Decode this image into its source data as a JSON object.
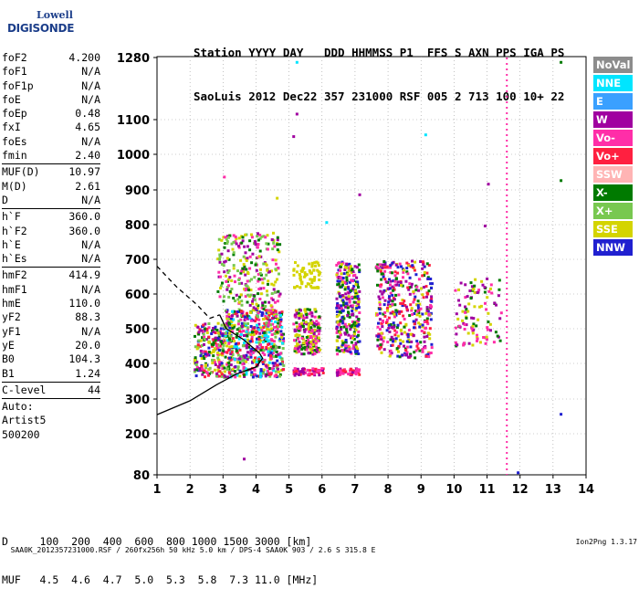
{
  "logo": {
    "line1": "Lowell",
    "line2": "DIGISONDE"
  },
  "header": {
    "line1": "Station YYYY DAY   DDD HHMMSS P1  FFS S AXN PPS IGA PS",
    "line2": "SaoLuis 2012 Dec22 357 231000 RSF 005 2 713 100 10+ 22"
  },
  "params_group1": [
    {
      "key": "foF2",
      "value": "4.200"
    },
    {
      "key": "foF1",
      "value": "N/A"
    },
    {
      "key": "foF1p",
      "value": "N/A"
    },
    {
      "key": "foE",
      "value": "N/A"
    },
    {
      "key": "foEp",
      "value": "0.48"
    },
    {
      "key": "fxI",
      "value": "4.65"
    },
    {
      "key": "foEs",
      "value": "N/A"
    },
    {
      "key": "fmin",
      "value": "2.40"
    }
  ],
  "params_group2": [
    {
      "key": "MUF(D)",
      "value": "10.97"
    },
    {
      "key": "M(D)",
      "value": "2.61"
    },
    {
      "key": "D",
      "value": "N/A"
    }
  ],
  "params_group3": [
    {
      "key": "h`F",
      "value": "360.0"
    },
    {
      "key": "h`F2",
      "value": "360.0"
    },
    {
      "key": "h`E",
      "value": "N/A"
    },
    {
      "key": "h`Es",
      "value": "N/A"
    }
  ],
  "params_group4": [
    {
      "key": "hmF2",
      "value": "414.9"
    },
    {
      "key": "hmF1",
      "value": "N/A"
    },
    {
      "key": "hmE",
      "value": "110.0"
    },
    {
      "key": "yF2",
      "value": "88.3"
    },
    {
      "key": "yF1",
      "value": "N/A"
    },
    {
      "key": "yE",
      "value": "20.0"
    },
    {
      "key": "B0",
      "value": "104.3"
    },
    {
      "key": "B1",
      "value": "1.24"
    }
  ],
  "clevel": {
    "key": "C-level",
    "value": "44"
  },
  "auto": [
    "Auto:",
    "Artist5",
    "500200"
  ],
  "legend": [
    {
      "label": "NoVal",
      "color": "#8c8c8c"
    },
    {
      "label": "NNE",
      "color": "#00e5ff"
    },
    {
      "label": "E",
      "color": "#3aa0ff"
    },
    {
      "label": "W",
      "color": "#a000a0"
    },
    {
      "label": "Vo-",
      "color": "#ff2ea8"
    },
    {
      "label": "Vo+",
      "color": "#ff2040"
    },
    {
      "label": "SSW",
      "color": "#ffb4b4"
    },
    {
      "label": "X-",
      "color": "#007a00"
    },
    {
      "label": "X+",
      "color": "#78c850"
    },
    {
      "label": "SSE",
      "color": "#d4d400"
    },
    {
      "label": "NNW",
      "color": "#2020d0"
    }
  ],
  "bottom": {
    "line1": "D     100  200  400  600  800 1000 1500 3000 [km]",
    "line2": "MUF   4.5  4.6  4.7  5.0  5.3  5.8  7.3 11.0 [MHz]"
  },
  "footer": {
    "left": "SAA0K_2012357231000.RSF / 260fx256h 50 kHz 5.0 km / DPS-4 SAA0K 903 / 2.6 S 315.8 E",
    "right": "Ion2Png 1.3.17"
  },
  "chart_data": {
    "type": "scatter",
    "x_range": [
      1,
      14
    ],
    "y_range": [
      80,
      1280
    ],
    "x_ticks": [
      1,
      2,
      3,
      4,
      5,
      6,
      7,
      8,
      9,
      10,
      11,
      12,
      13,
      14
    ],
    "y_ticks": [
      80,
      200,
      300,
      400,
      500,
      600,
      700,
      800,
      900,
      1000,
      1100,
      1280
    ],
    "y_scale": "nonlinear",
    "grid": "dotted",
    "trace_solid": [
      [
        1,
        255
      ],
      [
        2,
        295
      ],
      [
        2.8,
        340
      ],
      [
        3.4,
        370
      ],
      [
        4,
        390
      ],
      [
        4.2,
        415
      ],
      [
        4.1,
        430
      ],
      [
        3.6,
        470
      ],
      [
        3.1,
        500
      ],
      [
        2.9,
        540
      ]
    ],
    "trace_dashed": [
      [
        1,
        680
      ],
      [
        1.6,
        620
      ],
      [
        2.2,
        570
      ],
      [
        2.6,
        530
      ],
      [
        2.9,
        540
      ]
    ],
    "clusters": [
      {
        "x": [
          2.1,
          3.0
        ],
        "y": [
          365,
          520
        ],
        "density": 220,
        "colors": [
          "#ff2ea8",
          "#a000a0",
          "#007a00",
          "#d4d400",
          "#ff2040",
          "#2020d0",
          "#78c850"
        ]
      },
      {
        "x": [
          3.0,
          4.8
        ],
        "y": [
          365,
          560
        ],
        "density": 620,
        "colors": [
          "#ff2ea8",
          "#a000a0",
          "#d4d400",
          "#007a00",
          "#ff2040",
          "#2020d0",
          "#78c850",
          "#00e5ff"
        ]
      },
      {
        "x": [
          2.8,
          4.7
        ],
        "y": [
          560,
          780
        ],
        "density": 260,
        "colors": [
          "#d4d400",
          "#a000a0",
          "#ff2ea8",
          "#007a00",
          "#78c850"
        ]
      },
      {
        "x": [
          5.1,
          5.9
        ],
        "y": [
          430,
          560
        ],
        "density": 200,
        "colors": [
          "#d4d400",
          "#a000a0",
          "#ff2ea8",
          "#007a00"
        ]
      },
      {
        "x": [
          5.1,
          5.9
        ],
        "y": [
          620,
          700
        ],
        "density": 70,
        "colors": [
          "#d4d400"
        ]
      },
      {
        "x": [
          5.1,
          6.0
        ],
        "y": [
          370,
          390
        ],
        "density": 60,
        "colors": [
          "#ff2ea8",
          "#a000a0",
          "#ff2040"
        ]
      },
      {
        "x": [
          6.4,
          7.1
        ],
        "y": [
          430,
          700
        ],
        "density": 300,
        "colors": [
          "#d4d400",
          "#a000a0",
          "#ff2ea8",
          "#007a00",
          "#2020d0"
        ]
      },
      {
        "x": [
          6.4,
          7.1
        ],
        "y": [
          370,
          390
        ],
        "density": 50,
        "colors": [
          "#ff2ea8",
          "#a000a0",
          "#ff2040"
        ]
      },
      {
        "x": [
          7.6,
          9.3
        ],
        "y": [
          420,
          700
        ],
        "density": 420,
        "colors": [
          "#a000a0",
          "#ff2ea8",
          "#d4d400",
          "#007a00",
          "#ff2040",
          "#2020d0"
        ]
      },
      {
        "x": [
          10.0,
          11.4
        ],
        "y": [
          450,
          650
        ],
        "density": 110,
        "colors": [
          "#d4d400",
          "#ff2ea8",
          "#a000a0",
          "#007a00"
        ]
      }
    ],
    "vertical_line": {
      "x": 11.6,
      "y": [
        80,
        1280
      ],
      "color": "#ff2ea8"
    },
    "scattered_points": [
      {
        "x": 5.2,
        "y": 1270,
        "color": "#00e5ff"
      },
      {
        "x": 5.2,
        "y": 1120,
        "color": "#a000a0"
      },
      {
        "x": 5.1,
        "y": 1055,
        "color": "#a000a0"
      },
      {
        "x": 6.1,
        "y": 810,
        "color": "#00e5ff"
      },
      {
        "x": 7.1,
        "y": 890,
        "color": "#a000a0"
      },
      {
        "x": 9.1,
        "y": 1060,
        "color": "#00e5ff"
      },
      {
        "x": 11.0,
        "y": 920,
        "color": "#a000a0"
      },
      {
        "x": 10.9,
        "y": 800,
        "color": "#a000a0"
      },
      {
        "x": 13.2,
        "y": 1270,
        "color": "#007a00"
      },
      {
        "x": 13.2,
        "y": 930,
        "color": "#007a00"
      },
      {
        "x": 13.2,
        "y": 260,
        "color": "#2020d0"
      },
      {
        "x": 11.9,
        "y": 90,
        "color": "#2020d0"
      },
      {
        "x": 3.6,
        "y": 130,
        "color": "#a000a0"
      },
      {
        "x": 3.0,
        "y": 940,
        "color": "#ff2ea8"
      },
      {
        "x": 4.6,
        "y": 880,
        "color": "#d4d400"
      }
    ]
  }
}
